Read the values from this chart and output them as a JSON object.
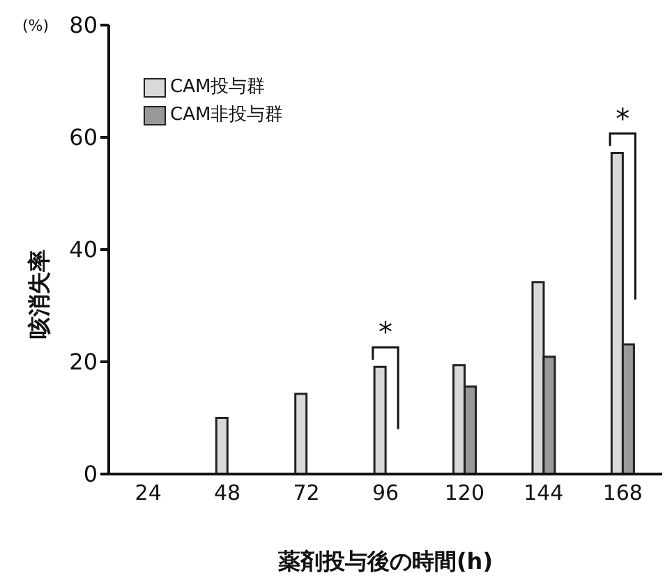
{
  "chart_data": {
    "type": "bar",
    "xlabel": "薬剤投与後の時間(h)",
    "ylabel": "咳消失率",
    "categories": [
      "24",
      "48",
      "72",
      "96",
      "120",
      "144",
      "168"
    ],
    "series": [
      {
        "name": "CAM投与群",
        "color": "#d9d9d9",
        "values": [
          null,
          10,
          14.3,
          19.1,
          19.4,
          34.2,
          57.2
        ]
      },
      {
        "name": "CAM非投与群",
        "color": "#999999",
        "values": [
          null,
          null,
          null,
          null,
          15.6,
          20.9,
          23.1
        ]
      }
    ],
    "ylim": [
      0,
      80
    ],
    "yticks": [
      0,
      20,
      40,
      60,
      80
    ],
    "grid": false,
    "legend": "top left",
    "annotations": [
      "(%)",
      {
        "text": "*",
        "x": "96",
        "y": 19.1
      },
      {
        "text": "*",
        "x": "168",
        "y": 57.2
      }
    ]
  }
}
